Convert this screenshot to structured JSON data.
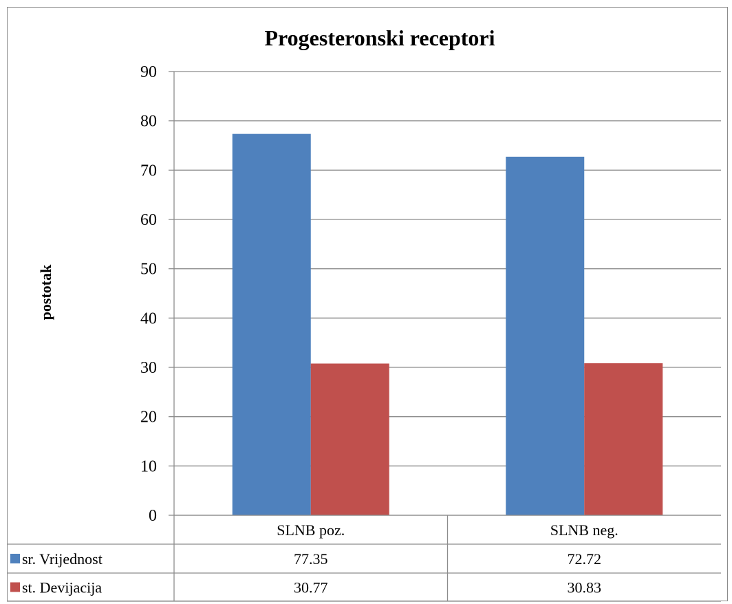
{
  "chart_data": {
    "type": "bar",
    "title": "Progesteronski receptori",
    "xlabel": "",
    "ylabel": "postotak",
    "ylim": [
      0,
      90
    ],
    "yticks": [
      0,
      10,
      20,
      30,
      40,
      50,
      60,
      70,
      80,
      90
    ],
    "grid": true,
    "legend": "data-table",
    "categories": [
      "SLNB poz.",
      "SLNB neg."
    ],
    "series": [
      {
        "name": "sr. Vrijednost",
        "color": "#4f81bd",
        "values": [
          77.35,
          72.72
        ],
        "labels": [
          "77.35",
          "72.72"
        ]
      },
      {
        "name": "st. Devijacija",
        "color": "#c0504d",
        "values": [
          30.77,
          30.83
        ],
        "labels": [
          "30.77",
          "30.83"
        ]
      }
    ]
  }
}
